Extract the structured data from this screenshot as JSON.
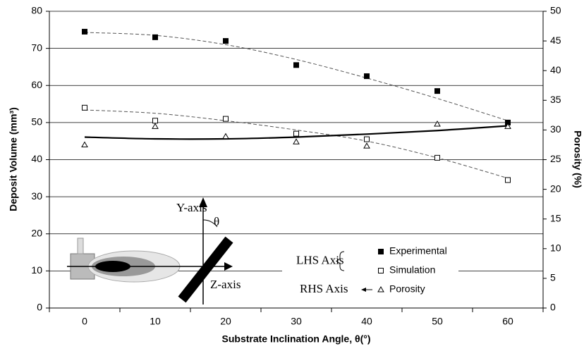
{
  "chart_data": {
    "type": "scatter",
    "x_label": "Substrate Inclination Angle, θ(°)",
    "y_label": "Deposit Volume (mm³)",
    "y2_label": "Porosity (%)",
    "x": [
      0,
      10,
      20,
      30,
      40,
      50,
      60
    ],
    "xlim": [
      -5,
      65
    ],
    "xticks": [
      0,
      10,
      20,
      30,
      40,
      50,
      60
    ],
    "ylim": [
      0,
      80
    ],
    "yticks": [
      0,
      10,
      20,
      30,
      40,
      50,
      60,
      70,
      80
    ],
    "y2lim": [
      0,
      50
    ],
    "y2ticks": [
      0,
      5,
      10,
      15,
      20,
      25,
      30,
      35,
      40,
      45,
      50
    ],
    "grid": true,
    "legend": "lower right",
    "series": [
      {
        "name": "Experimental",
        "color": "#000000",
        "marker": "filled-square",
        "values": [
          74.5,
          73,
          72,
          65.5,
          62.5,
          58.5,
          50
        ]
      },
      {
        "name": "Simulation",
        "color": "#000000",
        "marker": "open-square",
        "values": [
          54,
          50.5,
          51,
          47,
          45.5,
          40.5,
          34.5
        ]
      },
      {
        "name": "Porosity",
        "color": "#000000",
        "marker": "open-triangle",
        "axis": "y2",
        "values": [
          27.5,
          30.6,
          28.9,
          28,
          27.3,
          31,
          30.6
        ]
      }
    ],
    "trendlines": [
      {
        "color": "#555555",
        "dashed": true,
        "values": [
          74.3,
          73.5,
          71,
          67,
          62,
          56.5,
          50.5
        ]
      },
      {
        "color": "#555555",
        "dashed": true,
        "values": [
          53.4,
          52.5,
          50.5,
          48,
          45,
          40.5,
          35
        ]
      },
      {
        "color": "#000000",
        "dashed": false,
        "axis": "y2",
        "values": [
          28.8,
          28.5,
          28.5,
          28.8,
          29.3,
          29.9,
          30.7
        ]
      }
    ],
    "legend_groups": [
      "LHS Axis",
      "RHS Axis"
    ],
    "annotations": [
      "Y-axis",
      "θ",
      "Z-axis"
    ]
  }
}
